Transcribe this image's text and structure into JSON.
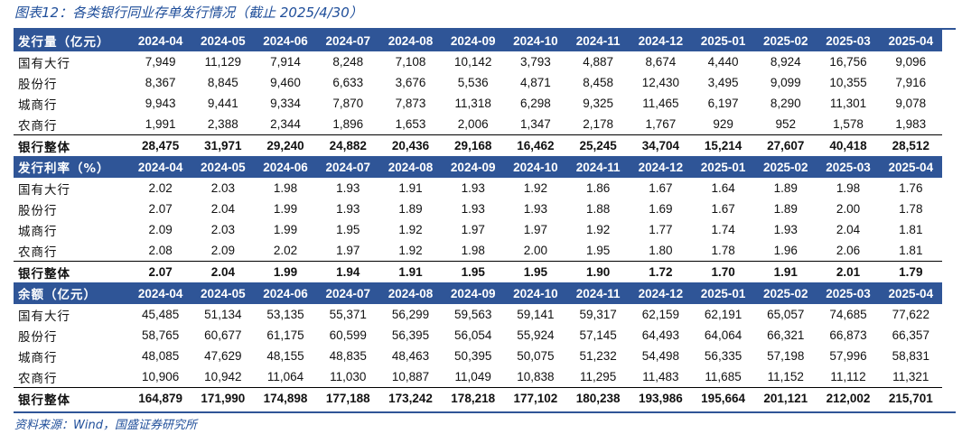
{
  "title": "图表12：各类银行同业存单发行情况（截止 2025/4/30）",
  "source": "资料来源：Wind，国盛证券研究所",
  "columns": [
    "2024-04",
    "2024-05",
    "2024-06",
    "2024-07",
    "2024-08",
    "2024-09",
    "2024-10",
    "2024-11",
    "2024-12",
    "2025-01",
    "2025-02",
    "2025-03",
    "2025-04"
  ],
  "sections": [
    {
      "header": "发行量（亿元）",
      "rows": [
        {
          "label": "国有大行",
          "values": [
            "7,949",
            "11,129",
            "7,914",
            "8,248",
            "7,108",
            "10,142",
            "3,793",
            "4,887",
            "8,674",
            "4,440",
            "8,924",
            "16,756",
            "9,096"
          ]
        },
        {
          "label": "股份行",
          "values": [
            "8,367",
            "8,845",
            "9,460",
            "6,633",
            "3,676",
            "5,536",
            "4,871",
            "8,458",
            "12,430",
            "3,495",
            "9,099",
            "10,355",
            "7,916"
          ]
        },
        {
          "label": "城商行",
          "values": [
            "9,943",
            "9,441",
            "9,334",
            "7,870",
            "7,873",
            "11,318",
            "6,298",
            "9,325",
            "11,465",
            "6,197",
            "8,290",
            "11,301",
            "9,078"
          ]
        },
        {
          "label": "农商行",
          "values": [
            "1,991",
            "2,388",
            "2,344",
            "1,896",
            "1,653",
            "2,006",
            "1,347",
            "2,178",
            "1,767",
            "929",
            "952",
            "1,578",
            "1,983"
          ]
        }
      ],
      "total": {
        "label": "银行整体",
        "values": [
          "28,475",
          "31,971",
          "29,240",
          "24,882",
          "20,436",
          "29,168",
          "16,462",
          "25,245",
          "34,704",
          "15,214",
          "27,607",
          "40,418",
          "28,512"
        ]
      }
    },
    {
      "header": "发行利率（%）",
      "rows": [
        {
          "label": "国有大行",
          "values": [
            "2.02",
            "2.03",
            "1.98",
            "1.93",
            "1.91",
            "1.93",
            "1.92",
            "1.86",
            "1.67",
            "1.64",
            "1.89",
            "1.98",
            "1.76"
          ]
        },
        {
          "label": "股份行",
          "values": [
            "2.07",
            "2.04",
            "1.99",
            "1.93",
            "1.89",
            "1.93",
            "1.93",
            "1.88",
            "1.69",
            "1.67",
            "1.89",
            "2.00",
            "1.78"
          ]
        },
        {
          "label": "城商行",
          "values": [
            "2.09",
            "2.03",
            "1.99",
            "1.95",
            "1.92",
            "1.97",
            "1.97",
            "1.92",
            "1.77",
            "1.74",
            "1.93",
            "2.04",
            "1.81"
          ]
        },
        {
          "label": "农商行",
          "values": [
            "2.08",
            "2.09",
            "2.02",
            "1.97",
            "1.92",
            "1.98",
            "2.00",
            "1.95",
            "1.80",
            "1.78",
            "1.96",
            "2.06",
            "1.81"
          ]
        }
      ],
      "total": {
        "label": "银行整体",
        "values": [
          "2.07",
          "2.04",
          "1.99",
          "1.94",
          "1.91",
          "1.95",
          "1.95",
          "1.90",
          "1.72",
          "1.70",
          "1.91",
          "2.01",
          "1.79"
        ]
      }
    },
    {
      "header": "余额（亿元）",
      "rows": [
        {
          "label": "国有大行",
          "values": [
            "45,485",
            "51,134",
            "53,135",
            "55,371",
            "56,299",
            "59,563",
            "59,141",
            "59,317",
            "62,159",
            "62,191",
            "65,057",
            "74,685",
            "77,622"
          ]
        },
        {
          "label": "股份行",
          "values": [
            "58,765",
            "60,677",
            "61,175",
            "60,599",
            "56,395",
            "56,054",
            "55,924",
            "57,145",
            "64,493",
            "64,064",
            "66,321",
            "66,873",
            "66,357"
          ]
        },
        {
          "label": "城商行",
          "values": [
            "48,085",
            "47,629",
            "48,155",
            "48,835",
            "48,463",
            "50,395",
            "50,075",
            "51,232",
            "54,498",
            "56,335",
            "57,198",
            "57,996",
            "58,831"
          ]
        },
        {
          "label": "农商行",
          "values": [
            "10,906",
            "10,942",
            "11,064",
            "11,030",
            "10,887",
            "11,049",
            "10,838",
            "11,295",
            "11,483",
            "11,685",
            "11,152",
            "11,112",
            "11,321"
          ]
        }
      ],
      "total": {
        "label": "银行整体",
        "values": [
          "164,879",
          "171,990",
          "174,898",
          "177,188",
          "173,242",
          "178,218",
          "177,102",
          "180,238",
          "193,986",
          "195,664",
          "201,121",
          "212,002",
          "215,701"
        ]
      }
    }
  ]
}
